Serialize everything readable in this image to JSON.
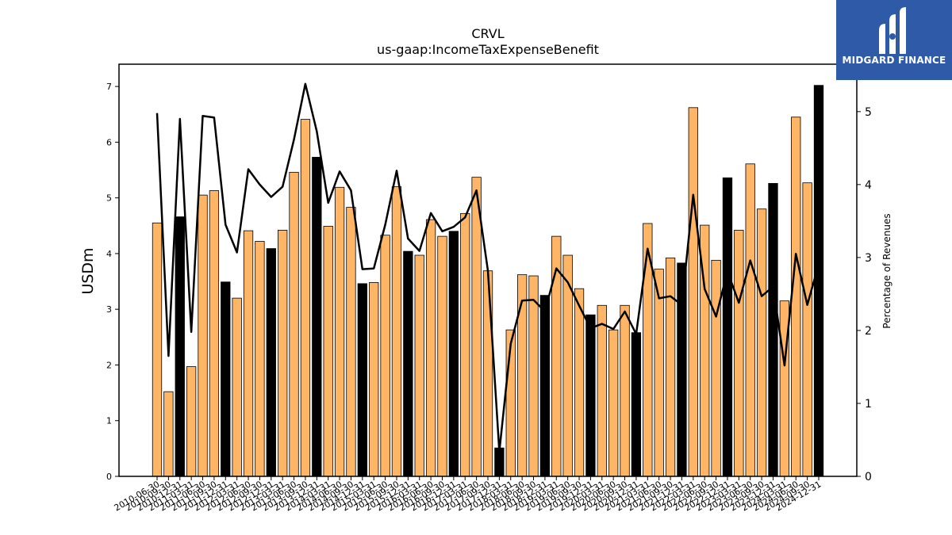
{
  "brand": {
    "name": "MIDGARD FINANCE",
    "logo_icon": "midgard-logo-icon",
    "background": "#2f5aa8"
  },
  "chart_data": {
    "type": "bar",
    "title": "CRVL",
    "subtitle": "us-gaap:IncomeTaxExpenseBenefit",
    "ylabel": "USDm",
    "y2label": "Percentage of Revenues",
    "ylim": [
      0,
      7.4
    ],
    "y2lim": [
      0,
      5.65
    ],
    "yticks": [
      0,
      1,
      2,
      3,
      4,
      5,
      6,
      7
    ],
    "y2ticks": [
      0,
      1,
      2,
      3,
      4,
      5
    ],
    "grid": false,
    "colors": {
      "quarter_bar": "#ffb566",
      "year_end_bar": "#000000",
      "line": "#000000"
    },
    "categories": [
      "2010-06-30",
      "2010-09-30",
      "2010-12-31",
      "2011-03-31",
      "2011-06-30",
      "2011-09-30",
      "2011-12-31",
      "2012-03-31",
      "2012-06-30",
      "2012-09-30",
      "2012-12-31",
      "2013-03-31",
      "2013-06-30",
      "2013-09-30",
      "2013-12-31",
      "2014-03-31",
      "2014-06-30",
      "2014-09-30",
      "2014-12-31",
      "2015-03-31",
      "2015-06-30",
      "2015-09-30",
      "2015-12-31",
      "2016-03-31",
      "2016-06-30",
      "2016-09-30",
      "2016-12-31",
      "2017-03-31",
      "2017-06-30",
      "2017-09-30",
      "2017-12-31",
      "2018-03-31",
      "2018-06-30",
      "2018-09-30",
      "2018-12-31",
      "2019-03-31",
      "2019-06-30",
      "2019-09-30",
      "2019-12-31",
      "2020-03-31",
      "2020-06-30",
      "2020-09-30",
      "2020-12-31",
      "2021-03-31",
      "2021-06-30",
      "2021-09-30",
      "2021-12-31",
      "2022-03-31",
      "2022-06-30",
      "2022-09-30",
      "2022-12-31",
      "2023-03-31",
      "2023-06-30",
      "2023-09-30",
      "2023-12-31",
      "2024-03-31",
      "2024-06-30",
      "2024-09-30",
      "2024-12-31"
    ],
    "series": [
      {
        "type": "bar",
        "values": [
          4.55,
          1.52,
          4.66,
          1.97,
          5.05,
          5.13,
          3.49,
          3.2,
          4.41,
          4.22,
          4.09,
          4.42,
          5.46,
          6.41,
          5.73,
          4.49,
          5.19,
          4.83,
          3.46,
          3.48,
          4.33,
          5.2,
          4.04,
          3.97,
          4.61,
          4.31,
          4.4,
          4.72,
          5.37,
          3.69,
          0.51,
          2.63,
          3.62,
          3.6,
          3.25,
          4.31,
          3.97,
          3.37,
          2.9,
          3.07,
          2.63,
          3.07,
          2.58,
          4.54,
          3.72,
          3.92,
          3.83,
          6.62,
          4.51,
          3.88,
          5.36,
          4.42,
          5.61,
          4.8,
          5.26,
          3.15,
          6.45,
          5.27,
          7.02
        ]
      },
      {
        "type": "line",
        "axis": "right",
        "values": [
          4.98,
          1.65,
          4.9,
          1.98,
          4.94,
          4.92,
          3.45,
          3.07,
          4.21,
          4.0,
          3.83,
          3.97,
          4.62,
          5.38,
          4.73,
          3.75,
          4.18,
          3.92,
          2.84,
          2.85,
          3.45,
          4.19,
          3.26,
          3.09,
          3.61,
          3.36,
          3.42,
          3.55,
          3.92,
          2.82,
          0.34,
          1.82,
          2.41,
          2.42,
          2.26,
          2.85,
          2.66,
          2.34,
          2.03,
          2.09,
          2.02,
          2.26,
          1.95,
          3.12,
          2.44,
          2.47,
          2.35,
          3.86,
          2.57,
          2.19,
          2.81,
          2.38,
          2.96,
          2.47,
          2.6,
          1.52,
          3.05,
          2.35,
          2.91
        ]
      }
    ]
  }
}
